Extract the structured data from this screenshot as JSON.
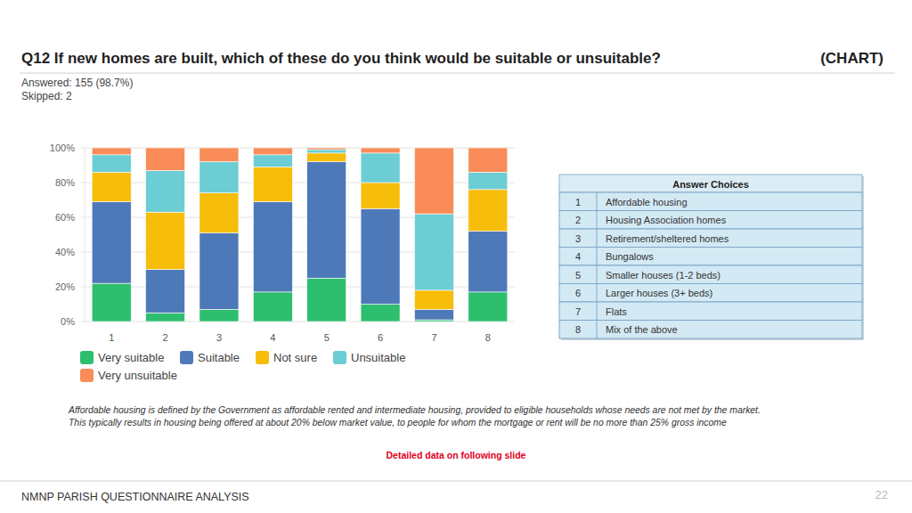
{
  "header": {
    "question": "Q12  If new homes are built, which of these do you think would be suitable or unsuitable?",
    "tag": "(CHART)",
    "answered": "Answered: 155 (98.7%)",
    "skipped": "Skipped: 2"
  },
  "chart_data": {
    "type": "bar",
    "stacked": true,
    "grid": true,
    "legend": "bottom",
    "categories": [
      "1",
      "2",
      "3",
      "4",
      "5",
      "6",
      "7",
      "8"
    ],
    "ylim": [
      0,
      100
    ],
    "yticks": [
      {
        "value": 0,
        "label": "0%"
      },
      {
        "value": 20,
        "label": "20%"
      },
      {
        "value": 40,
        "label": "40%"
      },
      {
        "value": 60,
        "label": "60%"
      },
      {
        "value": 80,
        "label": "80%"
      },
      {
        "value": 100,
        "label": "100%"
      }
    ],
    "series": [
      {
        "name": "Very suitable",
        "color": "#2dbf6e",
        "values": [
          22,
          5,
          7,
          17,
          25,
          10,
          1,
          17
        ]
      },
      {
        "name": "Suitable",
        "color": "#4e79b8",
        "values": [
          47,
          25,
          44,
          52,
          67,
          55,
          6,
          35
        ]
      },
      {
        "name": "Not sure",
        "color": "#f7bd0b",
        "values": [
          17,
          33,
          23,
          20,
          5,
          15,
          11,
          24
        ]
      },
      {
        "name": "Unsuitable",
        "color": "#6ccdd4",
        "values": [
          10,
          24,
          18,
          7,
          2,
          17,
          44,
          10
        ]
      },
      {
        "name": "Very unsuitable",
        "color": "#f98c58",
        "values": [
          4,
          13,
          8,
          4,
          1,
          3,
          38,
          14
        ]
      }
    ]
  },
  "table": {
    "title": "Answer Choices",
    "rows": [
      [
        "1",
        "Affordable housing"
      ],
      [
        "2",
        "Housing Association homes"
      ],
      [
        "3",
        "Retirement/sheltered homes"
      ],
      [
        "4",
        "Bungalows"
      ],
      [
        "5",
        "Smaller houses (1-2 beds)"
      ],
      [
        "6",
        "Larger houses (3+ beds)"
      ],
      [
        "7",
        "Flats"
      ],
      [
        "8",
        "Mix of the above"
      ]
    ]
  },
  "footnote": [
    "Affordable housing is defined by the Government as affordable rented and intermediate housing, provided to eligible households whose needs are not met by the market.",
    "This typically results in housing being offered at about 20% below market value, to people for whom the mortgage or rent will be no more than 25% gross income"
  ],
  "note": "Detailed data on following slide",
  "footer": {
    "text": "NMNP PARISH QUESTIONNAIRE ANALYSIS",
    "page": "22"
  }
}
